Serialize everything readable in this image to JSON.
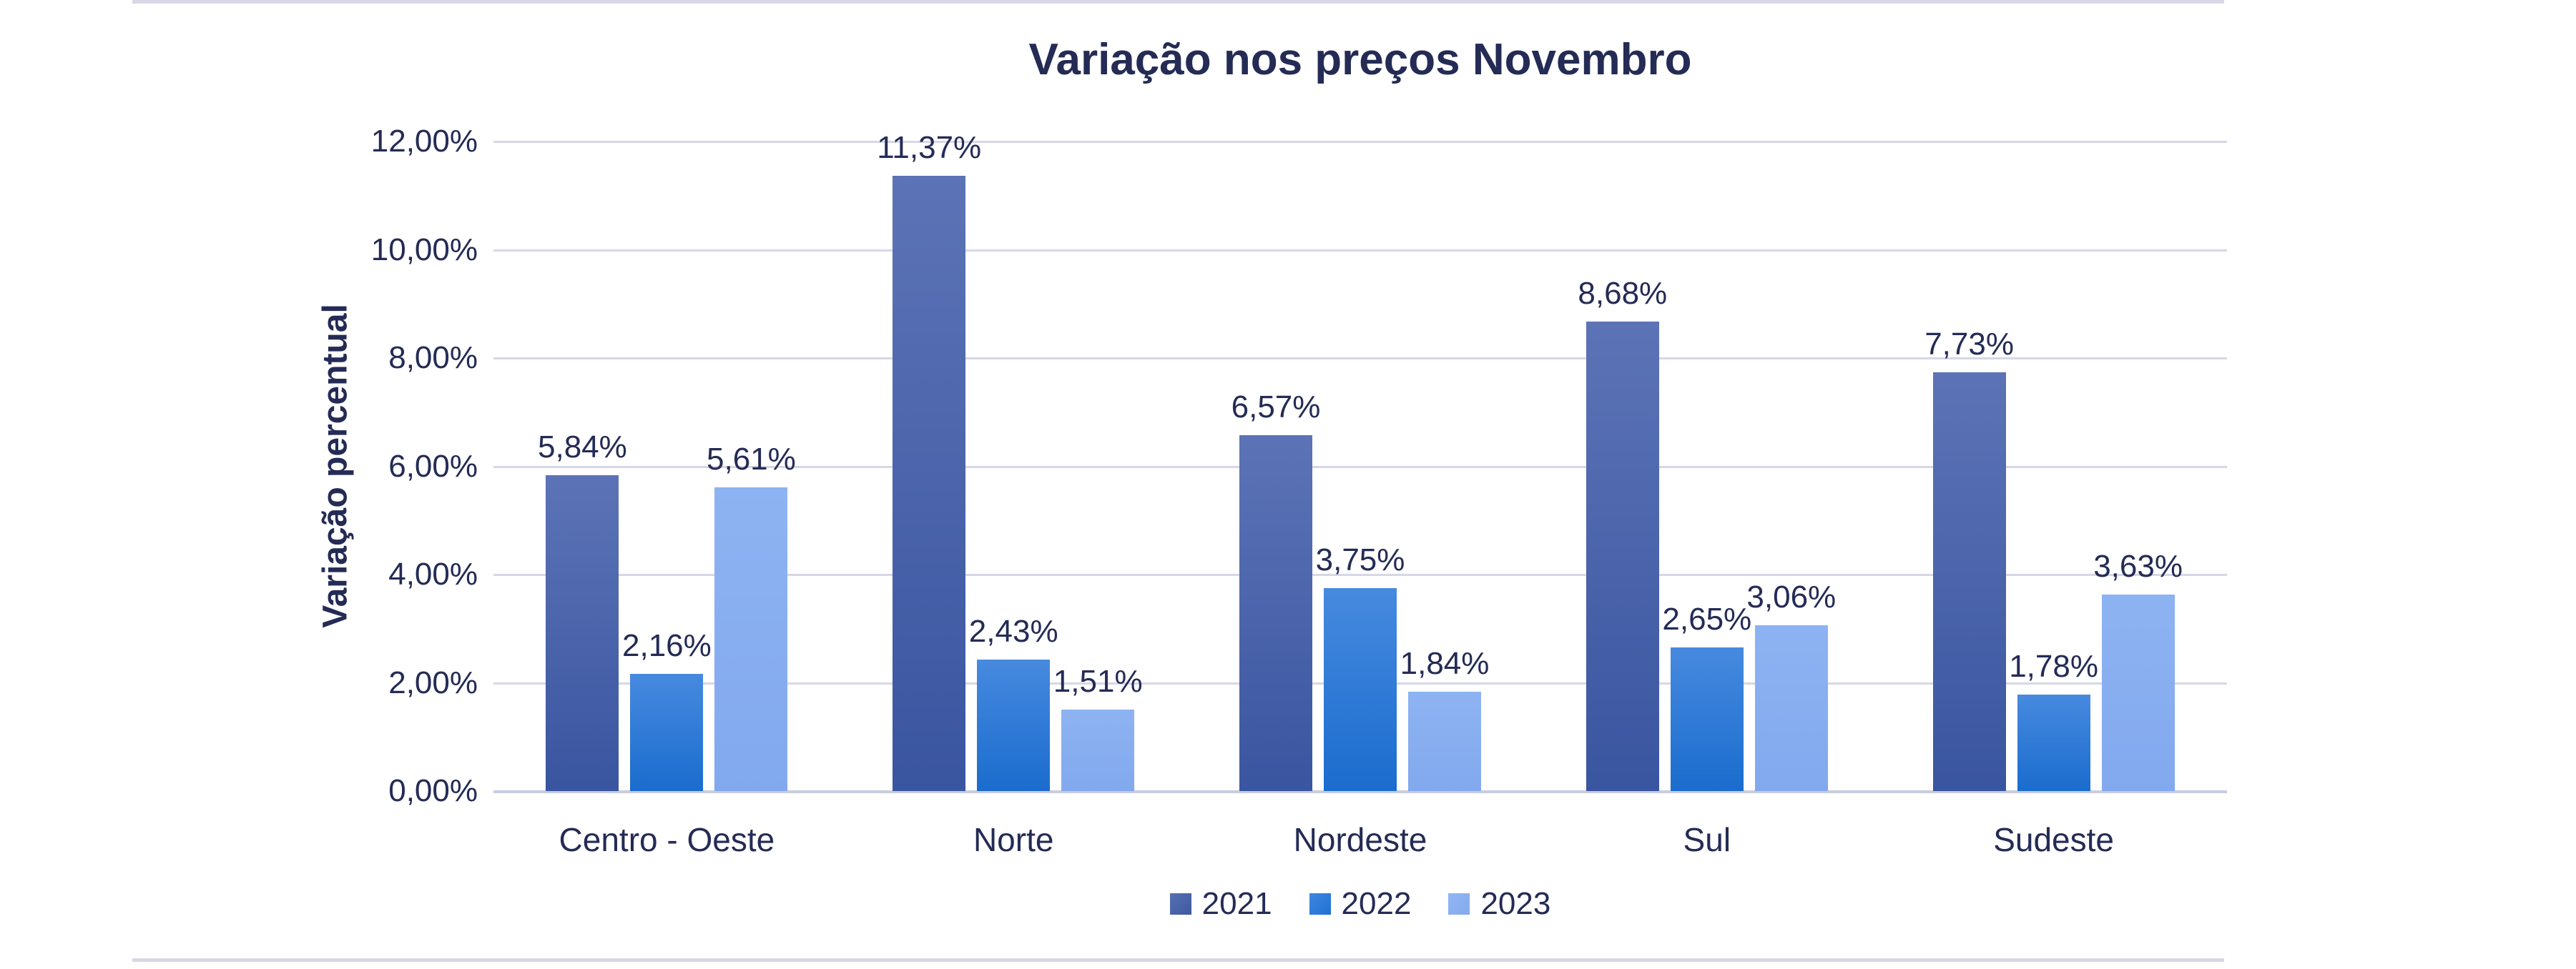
{
  "chart_data": {
    "type": "bar",
    "title": "Variação nos preços Novembro",
    "ylabel": "Variação percentual",
    "xlabel": "",
    "categories": [
      "Centro - Oeste",
      "Norte",
      "Nordeste",
      "Sul",
      "Sudeste"
    ],
    "series": [
      {
        "name": "2021",
        "values": [
          5.84,
          11.37,
          6.57,
          8.68,
          7.73
        ],
        "labels": [
          "5,84%",
          "11,37%",
          "6,57%",
          "8,68%",
          "7,73%"
        ]
      },
      {
        "name": "2022",
        "values": [
          2.16,
          2.43,
          3.75,
          2.65,
          1.78
        ],
        "labels": [
          "2,16%",
          "2,43%",
          "3,75%",
          "2,65%",
          "1,78%"
        ]
      },
      {
        "name": "2023",
        "values": [
          5.61,
          1.51,
          1.84,
          3.06,
          3.63
        ],
        "labels": [
          "5,61%",
          "1,51%",
          "1,84%",
          "3,06%",
          "3,63%"
        ]
      }
    ],
    "y_ticks": [
      "12,00%",
      "10,00%",
      "8,00%",
      "6,00%",
      "4,00%",
      "2,00%",
      "0,00%"
    ],
    "ylim": [
      0,
      12
    ],
    "grid": true,
    "legend_position": "bottom"
  },
  "colors": {
    "text": "#242b55",
    "gridline": "#d6d7e6",
    "axis_line": "#c9cbde",
    "border_rule": "#d7d7e7",
    "series_2021_top": "#5c73b6",
    "series_2021_bottom": "#3a55a0",
    "series_2022_top": "#478adf",
    "series_2022_bottom": "#1a6cce",
    "series_2023_top": "#8db3f2",
    "series_2023_bottom": "#82a9ee"
  }
}
